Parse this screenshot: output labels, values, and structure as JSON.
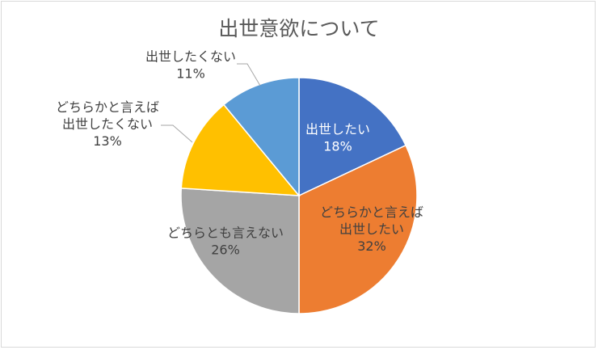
{
  "chart_data": {
    "type": "pie",
    "title": "出世意欲について",
    "slices": [
      {
        "label_lines": [
          "出世したい"
        ],
        "pct_label": "18%",
        "value": 18,
        "color": "#4472C4"
      },
      {
        "label_lines": [
          "どちらかと言えば",
          "出世したい"
        ],
        "pct_label": "32%",
        "value": 32,
        "color": "#ED7D31"
      },
      {
        "label_lines": [
          "どちらとも言えない"
        ],
        "pct_label": "26%",
        "value": 26,
        "color": "#A5A5A5"
      },
      {
        "label_lines": [
          "どちらかと言えば",
          "出世したくない"
        ],
        "pct_label": "13%",
        "value": 13,
        "color": "#FFC000"
      },
      {
        "label_lines": [
          "出世したくない"
        ],
        "pct_label": "11%",
        "value": 11,
        "color": "#5B9BD5"
      }
    ],
    "label_colors": [
      "#ffffff",
      "#404040",
      "#404040",
      "#404040",
      "#404040"
    ]
  }
}
